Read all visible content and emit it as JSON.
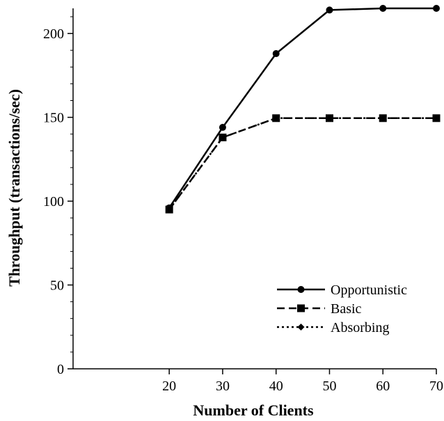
{
  "chart_data": {
    "type": "line",
    "title": "",
    "xlabel": "Number of Clients",
    "ylabel": "Throughput (transactions/sec)",
    "x": [
      20,
      30,
      40,
      50,
      60,
      70
    ],
    "xticks": [
      "20",
      "30",
      "40",
      "50",
      "60",
      "70"
    ],
    "yticks": [
      "0",
      "50",
      "100",
      "150",
      "200"
    ],
    "xlim": [
      2,
      70
    ],
    "ylim": [
      0,
      215
    ],
    "grid": false,
    "legend_position": "bottom-right",
    "series": [
      {
        "name": "Opportunistic",
        "marker": "circle",
        "dash": "solid",
        "color": "#000000",
        "values": [
          96,
          144,
          188,
          214,
          215,
          215
        ]
      },
      {
        "name": "Basic",
        "marker": "square",
        "dash": "dashed",
        "color": "#000000",
        "values": [
          95,
          138,
          149.5,
          149.5,
          149.5,
          149.5
        ]
      },
      {
        "name": "Absorbing",
        "marker": "diamond",
        "dash": "dotted",
        "color": "#000000",
        "values": [
          95,
          138,
          149.5,
          149.5,
          149.5,
          149.5
        ]
      }
    ]
  }
}
